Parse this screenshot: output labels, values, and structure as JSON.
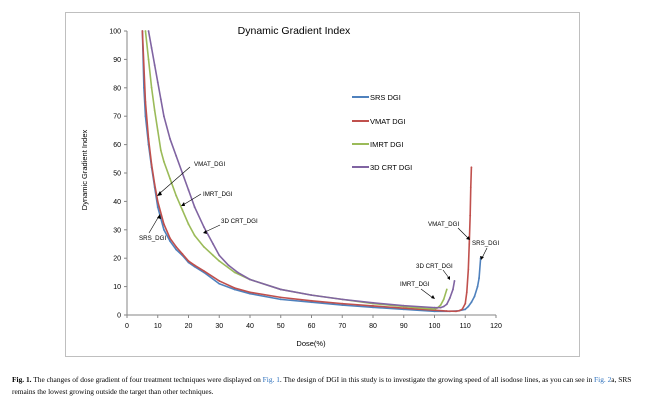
{
  "chart_data": {
    "type": "line",
    "title": "Dynamic Gradient Index",
    "xlabel": "Dose(%)",
    "ylabel": "Dynamic Gradient Index",
    "xlim": [
      0,
      120
    ],
    "ylim": [
      0,
      100
    ],
    "xticks": [
      "0",
      "10",
      "20",
      "30",
      "40",
      "50",
      "60",
      "70",
      "80",
      "90",
      "100",
      "110",
      "120"
    ],
    "yticks": [
      "0",
      "10",
      "20",
      "30",
      "40",
      "50",
      "60",
      "70",
      "80",
      "90",
      "100"
    ],
    "grid": false,
    "legend_position": "right",
    "series": [
      {
        "name": "SRS DGI",
        "color": "#4f81bd",
        "points": [
          [
            5,
            100
          ],
          [
            5.5,
            80
          ],
          [
            6,
            70
          ],
          [
            7,
            60
          ],
          [
            8,
            52
          ],
          [
            9,
            45
          ],
          [
            10,
            38
          ],
          [
            12,
            30
          ],
          [
            14,
            26
          ],
          [
            16,
            23
          ],
          [
            18,
            21
          ],
          [
            20,
            18.5
          ],
          [
            22,
            17
          ],
          [
            25,
            15
          ],
          [
            30,
            11
          ],
          [
            35,
            9
          ],
          [
            40,
            7.5
          ],
          [
            50,
            5.5
          ],
          [
            60,
            4.5
          ],
          [
            70,
            3.5
          ],
          [
            80,
            2.7
          ],
          [
            90,
            2
          ],
          [
            100,
            1.3
          ],
          [
            105,
            1.3
          ],
          [
            108,
            1.5
          ],
          [
            110,
            2
          ],
          [
            111,
            3
          ],
          [
            112,
            4.5
          ],
          [
            113,
            6.5
          ],
          [
            114,
            10
          ],
          [
            114.5,
            13
          ],
          [
            115,
            20
          ]
        ]
      },
      {
        "name": "VMAT DGI",
        "color": "#c0504d",
        "points": [
          [
            5,
            100
          ],
          [
            6,
            75
          ],
          [
            7,
            62
          ],
          [
            8,
            53
          ],
          [
            9,
            46
          ],
          [
            10,
            40
          ],
          [
            12,
            32
          ],
          [
            14,
            27
          ],
          [
            16,
            24
          ],
          [
            18,
            21.5
          ],
          [
            20,
            19
          ],
          [
            22,
            17.5
          ],
          [
            25,
            15.5
          ],
          [
            30,
            12
          ],
          [
            35,
            9.5
          ],
          [
            40,
            8
          ],
          [
            50,
            6.2
          ],
          [
            60,
            5
          ],
          [
            70,
            4
          ],
          [
            80,
            3.2
          ],
          [
            90,
            2.4
          ],
          [
            100,
            1.7
          ],
          [
            104,
            1.4
          ],
          [
            107,
            1.3
          ],
          [
            108,
            1.5
          ],
          [
            109,
            2
          ],
          [
            110,
            4
          ],
          [
            110.5,
            8
          ],
          [
            111,
            16
          ],
          [
            111.3,
            25
          ],
          [
            111.6,
            35
          ],
          [
            111.8,
            45
          ],
          [
            112,
            52
          ]
        ]
      },
      {
        "name": "IMRT DGI",
        "color": "#9bbb59",
        "points": [
          [
            6,
            100
          ],
          [
            7,
            90
          ],
          [
            8,
            80
          ],
          [
            9,
            72
          ],
          [
            10,
            65
          ],
          [
            11,
            58
          ],
          [
            12,
            54
          ],
          [
            14,
            48
          ],
          [
            16,
            42
          ],
          [
            18,
            37
          ],
          [
            20,
            32
          ],
          [
            22,
            28
          ],
          [
            25,
            24
          ],
          [
            28,
            21
          ],
          [
            30,
            19
          ],
          [
            35,
            15
          ],
          [
            40,
            12.5
          ],
          [
            50,
            9
          ],
          [
            60,
            7
          ],
          [
            70,
            5.5
          ],
          [
            80,
            4
          ],
          [
            90,
            3
          ],
          [
            95,
            2.5
          ],
          [
            100,
            2.1
          ],
          [
            101,
            2.5
          ],
          [
            102,
            3.5
          ],
          [
            103,
            5.5
          ],
          [
            104,
            9
          ]
        ]
      },
      {
        "name": "3D CRT DGI",
        "color": "#8064a2",
        "points": [
          [
            7,
            100
          ],
          [
            8,
            94
          ],
          [
            9,
            88
          ],
          [
            10,
            82
          ],
          [
            11,
            76
          ],
          [
            12,
            70
          ],
          [
            14,
            62
          ],
          [
            16,
            56
          ],
          [
            18,
            50
          ],
          [
            20,
            44
          ],
          [
            22,
            38
          ],
          [
            25,
            31
          ],
          [
            28,
            25
          ],
          [
            30,
            21
          ],
          [
            33,
            17.5
          ],
          [
            36,
            15
          ],
          [
            40,
            12.5
          ],
          [
            50,
            9
          ],
          [
            60,
            7
          ],
          [
            70,
            5.5
          ],
          [
            80,
            4.3
          ],
          [
            90,
            3.3
          ],
          [
            100,
            2.6
          ],
          [
            102,
            2.6
          ],
          [
            103,
            3
          ],
          [
            104,
            3.8
          ],
          [
            105,
            6
          ],
          [
            106,
            9
          ],
          [
            106.5,
            12
          ]
        ]
      }
    ],
    "annotations": [
      "VMAT_DGI",
      "IMRT_DGI",
      "3D CRT_DGI",
      "SRS_DGI",
      "VMAT_DGI",
      "SRS_DGI",
      "3D CRT_DGI",
      "IMRT_DGI"
    ]
  },
  "caption": {
    "lead": "Fig. 1.",
    "t1": " The changes of dose gradient of four treatment techniques were displayed on ",
    "ref1": "Fig. 1",
    "t2": ". The design of DGI in this study is to investigate the growing speed of all isodose lines, as you can see in ",
    "ref2": "Fig. 2",
    "t3": "a, SRS remains the lowest growing outside the target than other techniques."
  }
}
